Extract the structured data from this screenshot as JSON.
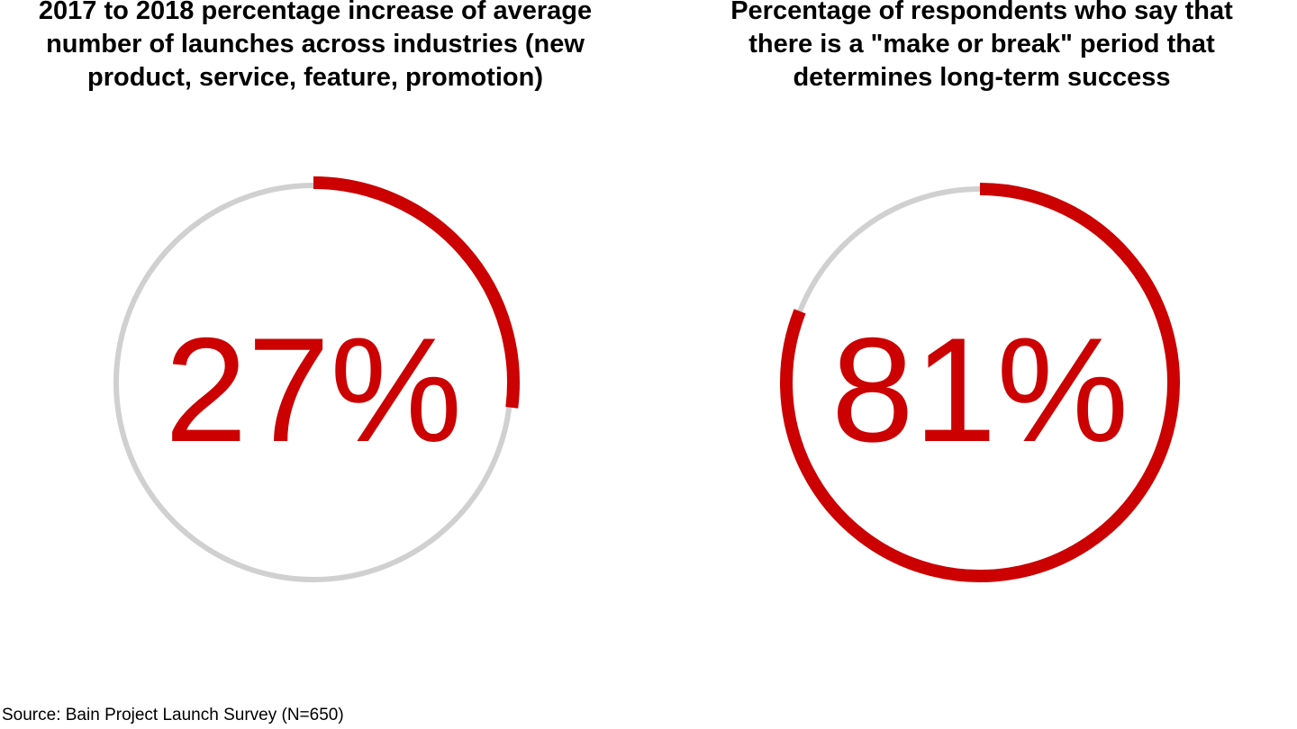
{
  "chart_data": [
    {
      "type": "donut",
      "title": "2017 to 2018 percentage increase of average number of launches across industries (new product, service, feature, promotion)",
      "value": 27,
      "value_label": "27%",
      "colors": {
        "highlight": "#cc0000",
        "track": "#d0d0d0",
        "label": "#cc0000"
      }
    },
    {
      "type": "donut",
      "title": "Percentage of respondents who say that there is a \"make or break\" period that determines long-term success",
      "value": 81,
      "value_label": "81%",
      "colors": {
        "highlight": "#cc0000",
        "track": "#d0d0d0",
        "label": "#cc0000"
      }
    }
  ],
  "source": "Source: Bain Project Launch Survey (N=650)"
}
